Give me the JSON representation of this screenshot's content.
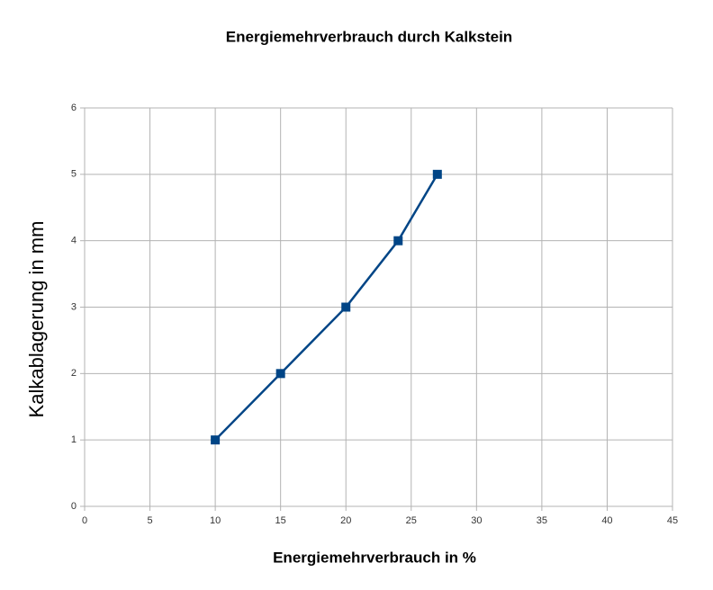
{
  "chart_data": {
    "type": "line",
    "title": "Energiemehrverbrauch durch Kalkstein",
    "x_label": "Energiemehrverbrauch in %",
    "y_label": "Kalkablagerung in mm",
    "x": [
      10,
      15,
      20,
      24,
      27
    ],
    "series": [
      {
        "name": "Kalkablagerung",
        "color": "#004586",
        "values": [
          1,
          2,
          3,
          4,
          5
        ]
      }
    ],
    "xlim": [
      0,
      45
    ],
    "xticks": [
      0,
      5,
      10,
      15,
      20,
      25,
      30,
      35,
      40,
      45
    ],
    "ylim": [
      0,
      6
    ],
    "yticks": [
      0,
      1,
      2,
      3,
      4,
      5,
      6
    ],
    "grid": true,
    "legend": false
  }
}
